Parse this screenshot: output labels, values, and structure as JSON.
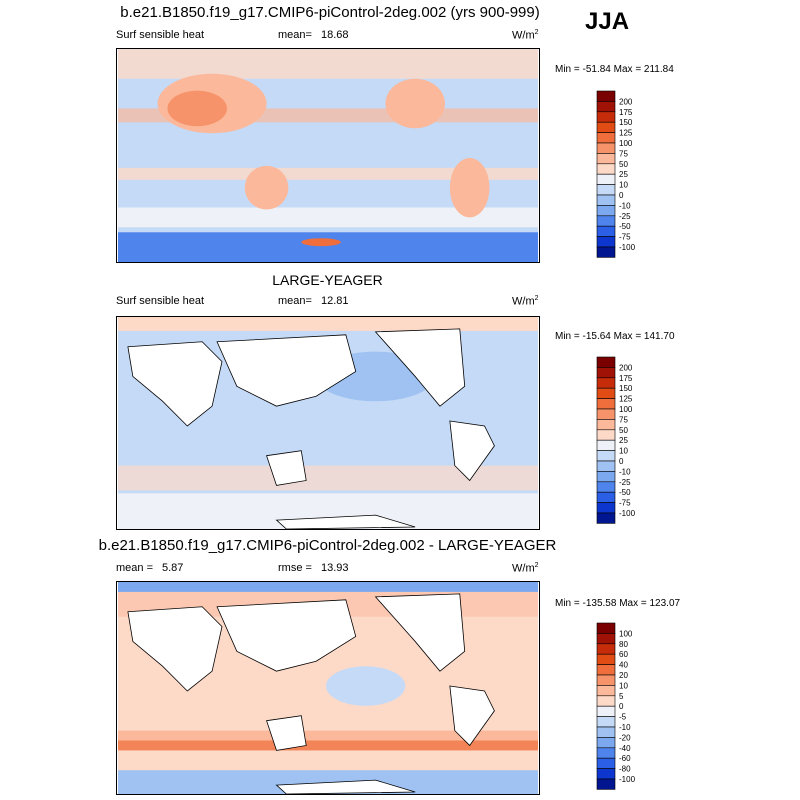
{
  "season": "JJA",
  "chart_data": [
    {
      "type": "heatmap",
      "title": "b.e21.B1850.f19_g17.CMIP6-piControl-2deg.002 (yrs 900-999)",
      "variable": "Surf sensible heat",
      "stat_label": "mean=",
      "stat_value": "18.68",
      "units": "W/m",
      "units_exp": "2",
      "minmax": "Min = -51.84 Max = 211.84",
      "colorbar": {
        "levels": [
          "200",
          "175",
          "150",
          "125",
          "100",
          "75",
          "50",
          "25",
          "10",
          "0",
          "-10",
          "-25",
          "-50",
          "-75",
          "-100"
        ],
        "colors": [
          "#7a0000",
          "#a01205",
          "#c72c0a",
          "#e04c14",
          "#ef6e3b",
          "#f7936a",
          "#fbb89b",
          "#fdd9c8",
          "#eef2f8",
          "#c5daf6",
          "#9fc2f2",
          "#7ba8ee",
          "#4f84ec",
          "#2b5fe6",
          "#0d36cf",
          "#001590"
        ]
      }
    },
    {
      "type": "heatmap",
      "title": "LARGE-YEAGER",
      "variable": "Surf sensible heat",
      "stat_label": "mean=",
      "stat_value": "12.81",
      "units": "W/m",
      "units_exp": "2",
      "minmax": "Min = -15.64 Max = 141.70",
      "colorbar": {
        "levels": [
          "200",
          "175",
          "150",
          "125",
          "100",
          "75",
          "50",
          "25",
          "10",
          "0",
          "-10",
          "-25",
          "-50",
          "-75",
          "-100"
        ],
        "colors": [
          "#7a0000",
          "#a01205",
          "#c72c0a",
          "#e04c14",
          "#ef6e3b",
          "#f7936a",
          "#fbb89b",
          "#fdd9c8",
          "#eef2f8",
          "#c5daf6",
          "#9fc2f2",
          "#7ba8ee",
          "#4f84ec",
          "#2b5fe6",
          "#0d36cf",
          "#001590"
        ]
      }
    },
    {
      "type": "heatmap",
      "title": "b.e21.B1850.f19_g17.CMIP6-piControl-2deg.002 - LARGE-YEAGER",
      "stat_label": "mean =",
      "stat_value": "5.87",
      "stat2_label": "rmse =",
      "stat2_value": "13.93",
      "units": "W/m",
      "units_exp": "2",
      "minmax": "Min = -135.58 Max = 123.07",
      "colorbar": {
        "levels": [
          "100",
          "80",
          "60",
          "40",
          "20",
          "10",
          "5",
          "0",
          "-5",
          "-10",
          "-20",
          "-40",
          "-60",
          "-80",
          "-100"
        ],
        "colors": [
          "#7a0000",
          "#a01205",
          "#c72c0a",
          "#e04c14",
          "#ef6e3b",
          "#f7936a",
          "#fbb89b",
          "#fdd9c8",
          "#eef2f8",
          "#c5daf6",
          "#9fc2f2",
          "#7ba8ee",
          "#4f84ec",
          "#2b5fe6",
          "#0d36cf",
          "#001590"
        ]
      }
    }
  ]
}
